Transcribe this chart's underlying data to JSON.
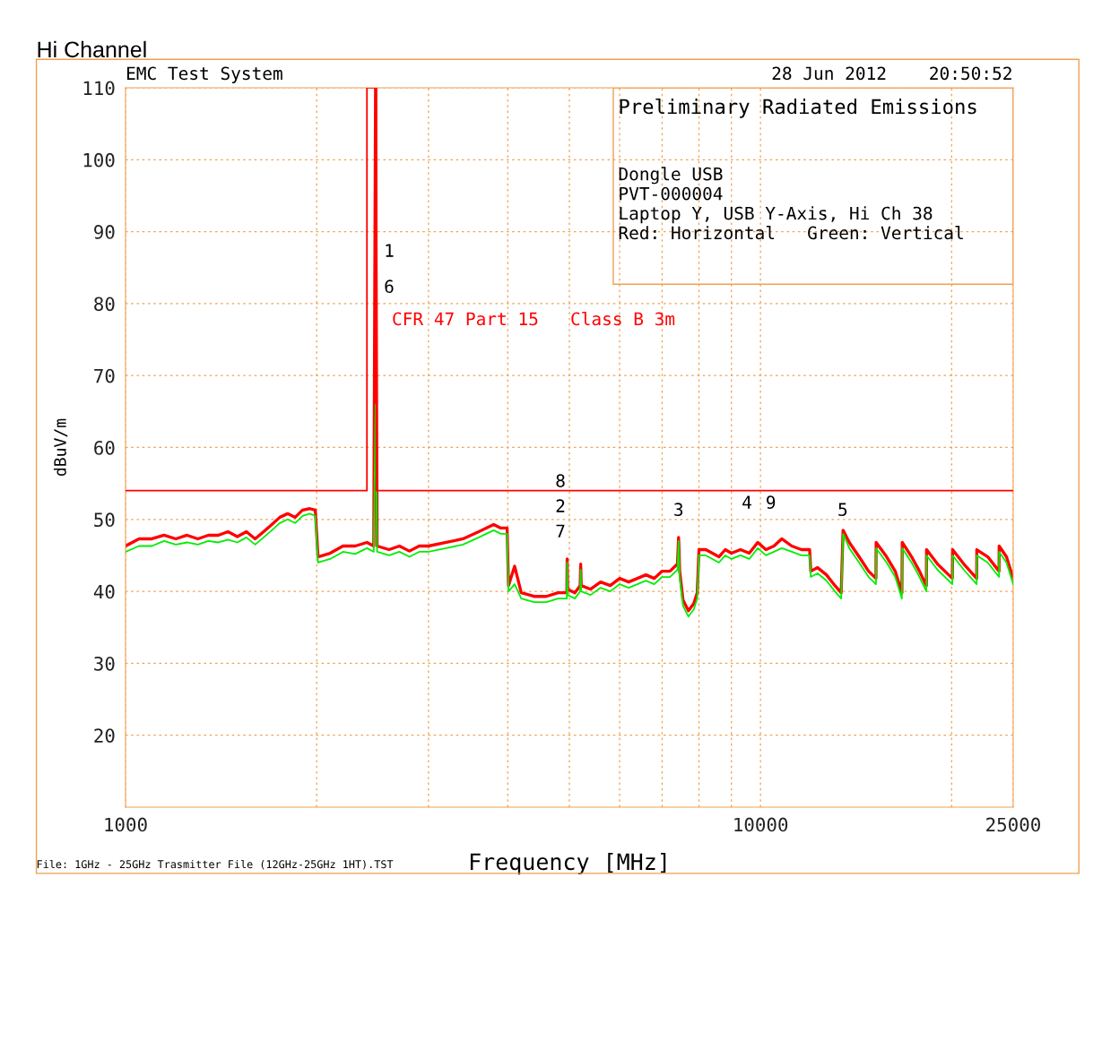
{
  "chart_data": {
    "type": "line",
    "title": "Hi Channel",
    "xlabel": "Frequency [MHz]",
    "ylabel": "dBuV/m",
    "log": "x",
    "xlim": [
      1000,
      25000
    ],
    "ylim": [
      10,
      110
    ],
    "xticks": [
      1000,
      {
        "value": 2000,
        "label": null
      },
      {
        "value": 3000,
        "label": null
      },
      {
        "value": 4000,
        "label": null
      },
      {
        "value": 5000,
        "label": null
      },
      {
        "value": 6000,
        "label": null
      },
      {
        "value": 7000,
        "label": null
      },
      {
        "value": 8000,
        "label": null
      },
      {
        "value": 9000,
        "label": null
      },
      10000,
      {
        "value": 20000,
        "label": null
      },
      25000
    ],
    "yticks": [
      20,
      30,
      40,
      50,
      60,
      70,
      80,
      90,
      100,
      110
    ],
    "grid": true,
    "line_style": "solid",
    "marker": "none",
    "x": [
      1000,
      1050,
      1100,
      1150,
      1200,
      1250,
      1300,
      1350,
      1400,
      1450,
      1500,
      1550,
      1600,
      1650,
      1700,
      1750,
      1800,
      1850,
      1900,
      1950,
      1990,
      2010,
      2100,
      2200,
      2300,
      2400,
      2460,
      2476,
      2490,
      2600,
      2700,
      2800,
      2900,
      3000,
      3200,
      3400,
      3600,
      3800,
      3900,
      3990,
      4010,
      4100,
      4200,
      4400,
      4600,
      4800,
      4955,
      4960,
      4970,
      5100,
      5200,
      5210,
      5220,
      5400,
      5600,
      5800,
      6000,
      6200,
      6400,
      6600,
      6800,
      7000,
      7200,
      7400,
      7430,
      7460,
      7550,
      7700,
      7850,
      7950,
      8000,
      8200,
      8400,
      8600,
      8800,
      9000,
      9300,
      9600,
      9900,
      10200,
      10500,
      10800,
      11200,
      11600,
      11950,
      12000,
      12300,
      12700,
      13100,
      13400,
      13490,
      13800,
      14300,
      14800,
      15200,
      15210,
      15800,
      16300,
      16700,
      16720,
      17300,
      17800,
      18250,
      18260,
      19000,
      20050,
      20070,
      20900,
      21900,
      21910,
      22800,
      23750,
      23760,
      24400,
      25000
    ],
    "series": [
      {
        "color": "#ff0000",
        "values": [
          46.3,
          47.3,
          47.3,
          47.8,
          47.3,
          47.8,
          47.3,
          47.8,
          47.8,
          48.3,
          47.6,
          48.3,
          47.3,
          48.3,
          49.3,
          50.3,
          50.8,
          50.3,
          51.3,
          51.5,
          51.3,
          44.8,
          45.3,
          46.3,
          46.3,
          46.8,
          46.3,
          110,
          46.3,
          45.8,
          46.3,
          45.6,
          46.3,
          46.3,
          46.8,
          47.3,
          48.3,
          49.3,
          48.8,
          48.8,
          40.8,
          43.5,
          39.8,
          39.3,
          39.3,
          39.8,
          39.8,
          44.5,
          40.3,
          39.8,
          40.8,
          43.8,
          40.8,
          40.3,
          41.3,
          40.8,
          41.8,
          41.3,
          41.8,
          42.3,
          41.8,
          42.8,
          42.8,
          43.8,
          47.5,
          42.8,
          38.8,
          37.3,
          38.3,
          39.8,
          45.8,
          45.8,
          45.3,
          44.8,
          45.8,
          45.3,
          45.8,
          45.3,
          46.8,
          45.8,
          46.3,
          47.3,
          46.3,
          45.8,
          45.8,
          42.8,
          43.3,
          42.3,
          40.8,
          39.8,
          48.5,
          46.8,
          44.8,
          42.8,
          41.8,
          46.8,
          44.8,
          42.8,
          39.8,
          46.8,
          44.8,
          42.8,
          40.8,
          45.8,
          43.8,
          41.8,
          45.8,
          43.8,
          41.8,
          45.8,
          44.8,
          42.8,
          46.3,
          44.8,
          41.8
        ]
      },
      {
        "color": "#00ee00",
        "values": [
          45.5,
          46.3,
          46.3,
          47,
          46.5,
          46.8,
          46.5,
          47,
          46.8,
          47.2,
          46.8,
          47.5,
          46.5,
          47.5,
          48.5,
          49.5,
          50,
          49.5,
          50.5,
          50.8,
          50.5,
          44,
          44.5,
          45.5,
          45.2,
          46,
          45.5,
          66,
          45.5,
          45,
          45.5,
          44.8,
          45.5,
          45.5,
          46,
          46.5,
          47.5,
          48.5,
          48,
          48,
          40,
          41,
          39,
          38.5,
          38.5,
          39,
          39,
          44,
          39.5,
          39,
          40,
          43,
          40,
          39.5,
          40.5,
          40,
          41,
          40.5,
          41,
          41.5,
          41,
          42,
          42,
          43,
          47,
          42,
          38,
          36.5,
          37.5,
          39,
          45,
          45,
          44.5,
          44,
          45,
          44.5,
          45,
          44.5,
          46,
          45,
          45.5,
          46,
          45.5,
          45,
          45,
          42,
          42.5,
          41.5,
          40,
          39,
          48,
          46,
          44,
          42,
          41,
          46,
          44,
          42,
          39,
          46,
          44,
          42,
          40,
          45,
          43,
          41,
          45,
          43,
          41,
          45,
          44,
          42,
          45.5,
          44,
          41
        ]
      },
      {
        "type": "step",
        "name": "CFR 47 Part 15   Class B 3m",
        "color": "#ff0000",
        "x": [
          1000,
          2400,
          2400,
          2483.5,
          2483.5,
          25000
        ],
        "values": [
          54,
          54,
          110,
          110,
          54,
          54
        ]
      }
    ],
    "annotations": [
      "EMC Test System",
      "28 Jun 2012    20:50:52",
      "Preliminary Radiated Emissions",
      "Dongle USB\nPVT-000004\nLaptop Y, USB Y-Axis, Hi Ch 38\nRed: Horizontal   Green: Vertical",
      "File: 1GHz - 25GHz Trasmitter File (12GHz-25GHz 1HT).TST",
      "1",
      "6",
      "8",
      "2",
      "7",
      "3",
      "9",
      "4",
      "5"
    ]
  }
}
